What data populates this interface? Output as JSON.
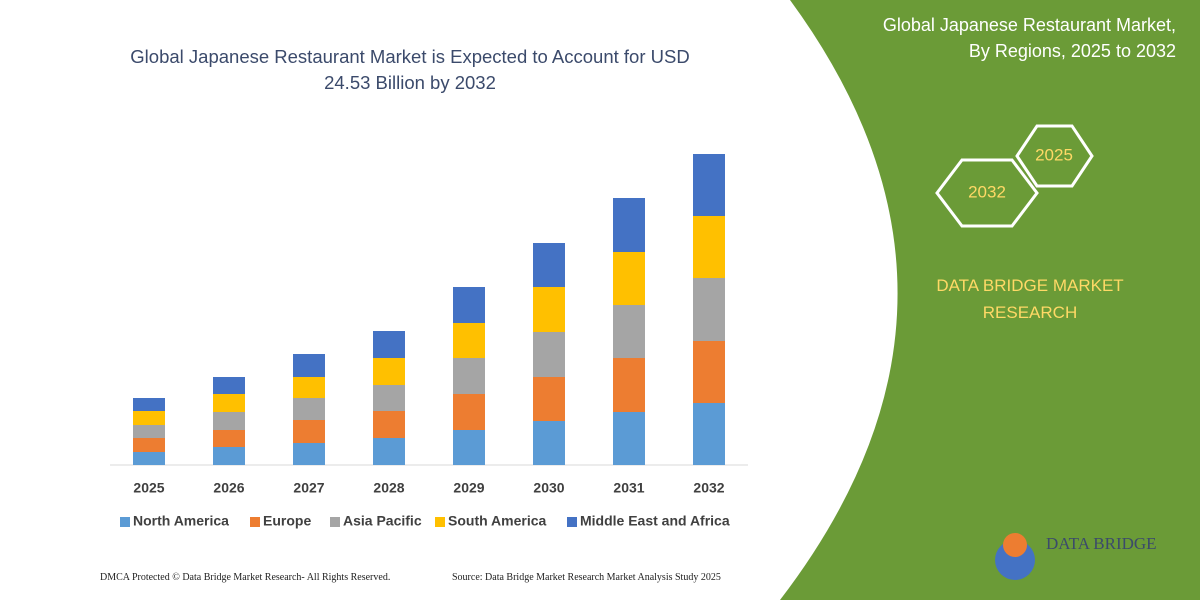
{
  "chart_data": {
    "type": "stacked-bar",
    "title": "Global Japanese Restaurant Market is Expected to Account for USD 24.53 Billion by 2032",
    "categories": [
      "2025",
      "2026",
      "2027",
      "2028",
      "2029",
      "2030",
      "2031",
      "2032"
    ],
    "series": [
      {
        "name": "North America",
        "color": "#5b9bd5",
        "values": [
          13,
          18,
          22,
          27,
          35,
          44,
          53,
          62
        ]
      },
      {
        "name": "Europe",
        "color": "#ed7d31",
        "values": [
          14,
          17,
          23,
          27,
          36,
          44,
          54,
          62
        ]
      },
      {
        "name": "Asia Pacific",
        "color": "#a5a5a5",
        "values": [
          13,
          18,
          22,
          26,
          36,
          45,
          53,
          63
        ]
      },
      {
        "name": "South America",
        "color": "#ffc000",
        "values": [
          14,
          18,
          21,
          27,
          35,
          45,
          53,
          62
        ]
      },
      {
        "name": "Middle East and Africa",
        "color": "#4472c4",
        "values": [
          13,
          17,
          23,
          27,
          36,
          44,
          54,
          62
        ]
      }
    ],
    "ylim": [
      0,
      320
    ]
  },
  "panel": {
    "title": "Global Japanese Restaurant Market, By Regions, 2025 to 2032",
    "hexagons": [
      "2032",
      "2025"
    ],
    "brand": "DATA BRIDGE MARKET RESEARCH",
    "logo": "DATA BRIDGE"
  },
  "footer": {
    "left": "DMCA Protected © Data Bridge Market Research- All Rights Reserved.",
    "right": "Source: Data Bridge Market Research Market Analysis Study 2025"
  }
}
